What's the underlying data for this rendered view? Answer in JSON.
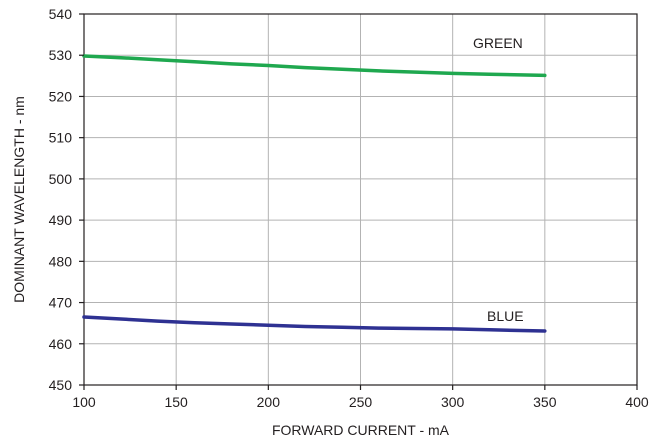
{
  "chart_data": {
    "type": "line",
    "xlabel": "FORWARD CURRENT - mA",
    "ylabel": "DOMINANT WAVELENGTH - nm",
    "xlim": [
      100,
      400
    ],
    "ylim": [
      450,
      540
    ],
    "x_ticks": [
      100,
      150,
      200,
      250,
      300,
      350,
      400
    ],
    "y_ticks": [
      450,
      460,
      470,
      480,
      490,
      500,
      510,
      520,
      530,
      540
    ],
    "grid": true,
    "series": [
      {
        "name": "GREEN",
        "color": "#1fa84f",
        "x": [
          100,
          120,
          140,
          160,
          180,
          200,
          220,
          240,
          260,
          280,
          300,
          320,
          340,
          350
        ],
        "y": [
          529.8,
          529.4,
          528.9,
          528.4,
          527.9,
          527.5,
          527.0,
          526.6,
          526.2,
          525.9,
          525.6,
          525.4,
          525.2,
          525.1
        ]
      },
      {
        "name": "BLUE",
        "color": "#2e3192",
        "x": [
          100,
          120,
          140,
          160,
          180,
          200,
          220,
          240,
          260,
          280,
          300,
          320,
          340,
          350
        ],
        "y": [
          466.5,
          466.0,
          465.5,
          465.1,
          464.8,
          464.5,
          464.2,
          464.0,
          463.8,
          463.7,
          463.6,
          463.4,
          463.2,
          463.1
        ]
      }
    ]
  }
}
